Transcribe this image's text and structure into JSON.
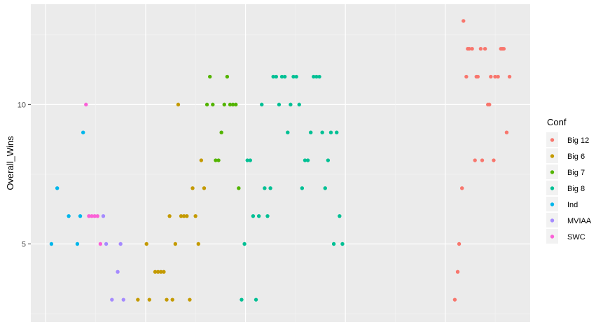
{
  "chart_data": {
    "type": "scatter",
    "title": "",
    "xlabel": "",
    "ylabel": "Overall_Wins",
    "ylim": [
      2.2,
      13.6
    ],
    "yticks": [
      5,
      10
    ],
    "grid": true,
    "legend_position": "right",
    "legend_title": "Conf",
    "series": [
      {
        "name": "Big 12",
        "color": "#F8766D",
        "points": [
          [
            0.4,
            3
          ],
          [
            0.5,
            4
          ],
          [
            0.55,
            5
          ],
          [
            0.65,
            7
          ],
          [
            0.7,
            13
          ],
          [
            0.8,
            11
          ],
          [
            0.85,
            12
          ],
          [
            0.9,
            12
          ],
          [
            1.0,
            12
          ],
          [
            1.1,
            8
          ],
          [
            1.15,
            11
          ],
          [
            1.2,
            11
          ],
          [
            1.3,
            12
          ],
          [
            1.35,
            8
          ],
          [
            1.45,
            12
          ],
          [
            1.55,
            10
          ],
          [
            1.6,
            10
          ],
          [
            1.65,
            11
          ],
          [
            1.75,
            8
          ],
          [
            1.8,
            11
          ],
          [
            1.9,
            11
          ],
          [
            2.0,
            12
          ],
          [
            2.05,
            12
          ],
          [
            2.1,
            12
          ],
          [
            2.2,
            9
          ],
          [
            2.3,
            11
          ]
        ]
      },
      {
        "name": "Big 6",
        "color": "#C49A00",
        "points": [
          [
            -10.6,
            3
          ],
          [
            -10.3,
            5
          ],
          [
            -10.2,
            3
          ],
          [
            -10.0,
            4
          ],
          [
            -9.9,
            4
          ],
          [
            -9.8,
            4
          ],
          [
            -9.7,
            4
          ],
          [
            -9.6,
            3
          ],
          [
            -9.5,
            6
          ],
          [
            -9.4,
            3
          ],
          [
            -9.3,
            5
          ],
          [
            -9.2,
            10
          ],
          [
            -9.1,
            6
          ],
          [
            -9.0,
            6
          ],
          [
            -8.9,
            6
          ],
          [
            -8.8,
            3
          ],
          [
            -8.7,
            7
          ],
          [
            -8.6,
            6
          ],
          [
            -8.5,
            5
          ],
          [
            -8.4,
            8
          ],
          [
            -8.3,
            7
          ]
        ]
      },
      {
        "name": "Big 7",
        "color": "#53B400",
        "points": [
          [
            -8.2,
            10
          ],
          [
            -8.1,
            11
          ],
          [
            -8.0,
            10
          ],
          [
            -7.9,
            8
          ],
          [
            -7.8,
            8
          ],
          [
            -7.7,
            9
          ],
          [
            -7.6,
            10
          ],
          [
            -7.5,
            11
          ],
          [
            -7.4,
            10
          ],
          [
            -7.3,
            10
          ],
          [
            -7.2,
            10
          ],
          [
            -7.1,
            7
          ]
        ]
      },
      {
        "name": "Big 8",
        "color": "#00C094",
        "points": [
          [
            -7.0,
            3
          ],
          [
            -6.9,
            5
          ],
          [
            -6.8,
            8
          ],
          [
            -6.7,
            8
          ],
          [
            -6.6,
            6
          ],
          [
            -6.5,
            3
          ],
          [
            -6.4,
            6
          ],
          [
            -6.3,
            10
          ],
          [
            -6.2,
            7
          ],
          [
            -6.1,
            6
          ],
          [
            -6.0,
            7
          ],
          [
            -5.9,
            11
          ],
          [
            -5.8,
            11
          ],
          [
            -5.7,
            10
          ],
          [
            -5.6,
            11
          ],
          [
            -5.5,
            11
          ],
          [
            -5.4,
            9
          ],
          [
            -5.3,
            10
          ],
          [
            -5.2,
            11
          ],
          [
            -5.1,
            11
          ],
          [
            -5.0,
            10
          ],
          [
            -4.9,
            7
          ],
          [
            -4.8,
            8
          ],
          [
            -4.7,
            8
          ],
          [
            -4.6,
            9
          ],
          [
            -4.5,
            11
          ],
          [
            -4.4,
            11
          ],
          [
            -4.3,
            11
          ],
          [
            -4.2,
            9
          ],
          [
            -4.1,
            7
          ],
          [
            -4.0,
            8
          ],
          [
            -3.9,
            9
          ],
          [
            -3.8,
            5
          ],
          [
            -3.7,
            9
          ],
          [
            -3.6,
            6
          ],
          [
            -3.5,
            5
          ]
        ]
      },
      {
        "name": "Ind",
        "color": "#00B6EB",
        "points": [
          [
            -13.6,
            5
          ],
          [
            -13.4,
            7
          ],
          [
            -13.0,
            6
          ],
          [
            -12.7,
            5
          ],
          [
            -12.6,
            6
          ],
          [
            -12.5,
            9
          ]
        ]
      },
      {
        "name": "MVIAA",
        "color": "#A58AFF",
        "points": [
          [
            -11.8,
            6
          ],
          [
            -11.7,
            5
          ],
          [
            -11.5,
            3
          ],
          [
            -11.3,
            4
          ],
          [
            -11.2,
            5
          ],
          [
            -11.1,
            3
          ]
        ]
      },
      {
        "name": "SWC",
        "color": "#FB61D7",
        "points": [
          [
            -12.4,
            10
          ],
          [
            -12.3,
            6
          ],
          [
            -12.2,
            6
          ],
          [
            -12.1,
            6
          ],
          [
            -12.0,
            6
          ],
          [
            -11.9,
            5
          ]
        ]
      }
    ]
  }
}
